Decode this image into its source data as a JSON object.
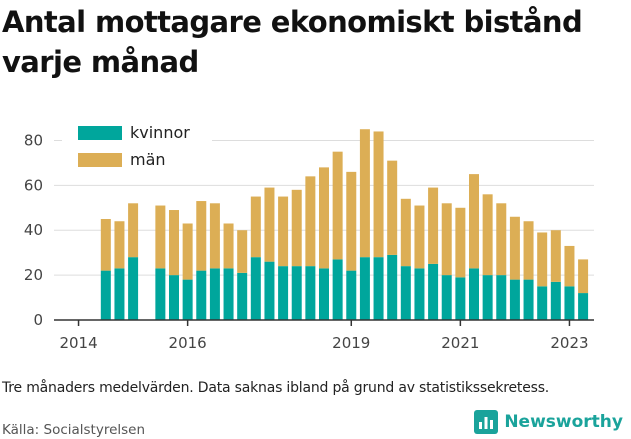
{
  "title": "Antal mottagare ekonomiskt bistånd varje månad",
  "footnote": "Tre månaders medelvärden. Data saknas ibland på grund av statistikssekretess.",
  "source": "Källa: Socialstyrelsen",
  "brand": {
    "name": "Newsworthy",
    "icon": "newsworthy-logo-icon",
    "color": "#1aa39b"
  },
  "colors": {
    "kvinnor": "#00a69c",
    "man": "#dcae55",
    "grid": "#dddddd",
    "axis": "#333333"
  },
  "chart_data": {
    "type": "bar",
    "stacked": true,
    "grid": true,
    "legend": "top-left",
    "ylim": [
      0,
      90
    ],
    "yticks": [
      0,
      20,
      40,
      60,
      80
    ],
    "xticks": [
      2014,
      2016,
      2019,
      2021,
      2023
    ],
    "xlim": [
      2013.55,
      2023.45
    ],
    "x": [
      2014.5,
      2014.75,
      2015.0,
      2015.5,
      2015.75,
      2016.0,
      2016.25,
      2016.5,
      2016.75,
      2017.0,
      2017.25,
      2017.5,
      2017.75,
      2018.0,
      2018.25,
      2018.5,
      2018.75,
      2019.0,
      2019.25,
      2019.5,
      2019.75,
      2020.0,
      2020.25,
      2020.5,
      2020.75,
      2021.0,
      2021.25,
      2021.5,
      2021.75,
      2022.0,
      2022.25,
      2022.5,
      2022.75,
      2023.0,
      2023.25
    ],
    "series": [
      {
        "name": "kvinnor",
        "color": "#00a69c",
        "values": [
          22,
          23,
          28,
          23,
          20,
          18,
          22,
          23,
          23,
          21,
          28,
          26,
          24,
          24,
          24,
          23,
          27,
          22,
          28,
          28,
          29,
          24,
          23,
          25,
          20,
          19,
          23,
          20,
          20,
          18,
          18,
          15,
          17,
          15,
          12
        ]
      },
      {
        "name": "män",
        "color": "#dcae55",
        "values": [
          23,
          21,
          24,
          28,
          29,
          25,
          31,
          29,
          20,
          19,
          27,
          33,
          31,
          34,
          40,
          45,
          48,
          44,
          57,
          56,
          42,
          30,
          28,
          34,
          32,
          31,
          42,
          36,
          32,
          28,
          26,
          24,
          23,
          18,
          15
        ]
      }
    ]
  }
}
